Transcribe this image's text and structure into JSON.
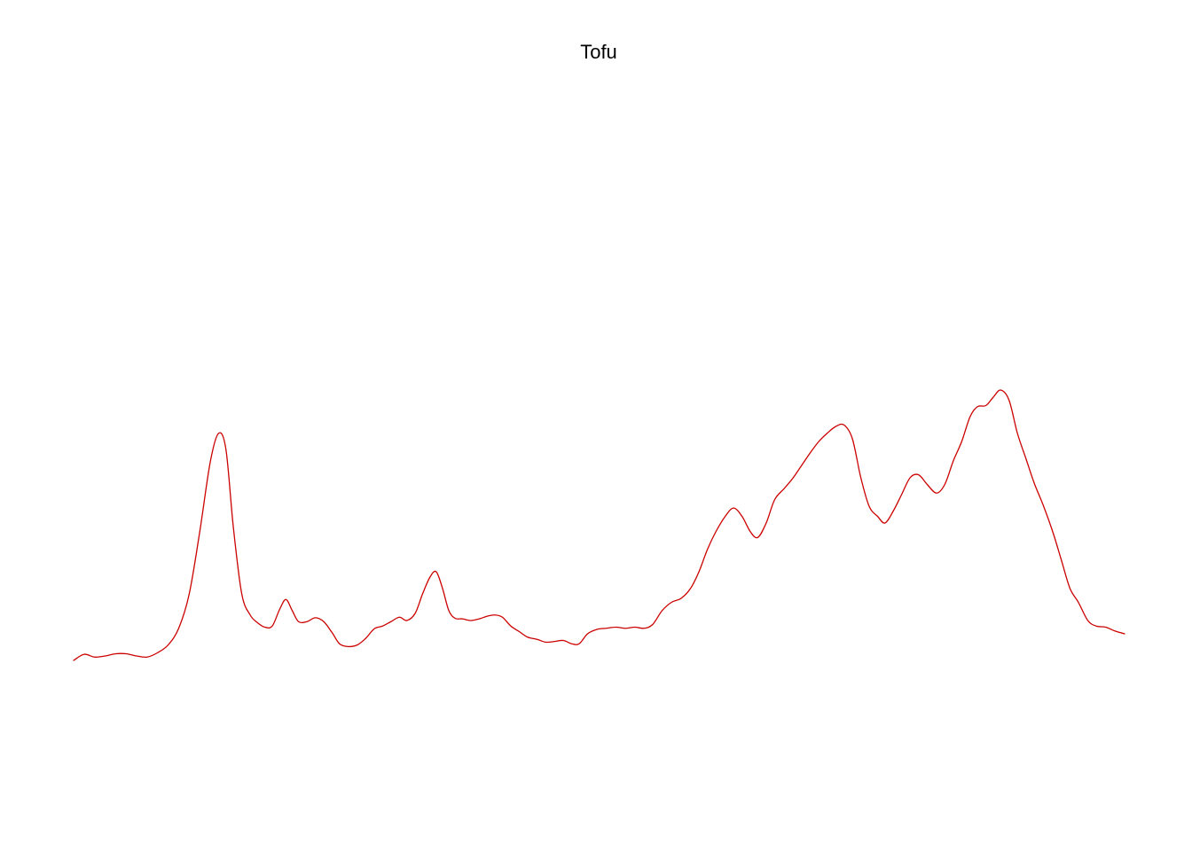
{
  "chart_data": {
    "type": "line",
    "title": "Tofu",
    "xlabel": "",
    "ylabel": "",
    "axes_visible": false,
    "grid": false,
    "legend": "none",
    "xlim": [
      0,
      100
    ],
    "ylim": [
      0,
      1
    ],
    "series": [
      {
        "color": "#cc0000",
        "points": [
          [
            0.0,
            0.0
          ],
          [
            1.0,
            0.011
          ],
          [
            2.0,
            0.006
          ],
          [
            3.0,
            0.008
          ],
          [
            4.0,
            0.012
          ],
          [
            5.0,
            0.012
          ],
          [
            6.0,
            0.008
          ],
          [
            7.0,
            0.006
          ],
          [
            8.0,
            0.014
          ],
          [
            9.0,
            0.028
          ],
          [
            10.0,
            0.058
          ],
          [
            11.0,
            0.12
          ],
          [
            12.0,
            0.232
          ],
          [
            13.0,
            0.358
          ],
          [
            13.8,
            0.41
          ],
          [
            14.5,
            0.38
          ],
          [
            15.2,
            0.24
          ],
          [
            16.0,
            0.12
          ],
          [
            16.8,
            0.082
          ],
          [
            17.5,
            0.068
          ],
          [
            18.2,
            0.06
          ],
          [
            18.9,
            0.062
          ],
          [
            19.6,
            0.092
          ],
          [
            20.2,
            0.11
          ],
          [
            20.8,
            0.09
          ],
          [
            21.4,
            0.07
          ],
          [
            22.2,
            0.07
          ],
          [
            23.0,
            0.077
          ],
          [
            23.8,
            0.07
          ],
          [
            24.6,
            0.05
          ],
          [
            25.3,
            0.03
          ],
          [
            26.1,
            0.025
          ],
          [
            27.0,
            0.028
          ],
          [
            27.8,
            0.04
          ],
          [
            28.6,
            0.057
          ],
          [
            29.4,
            0.062
          ],
          [
            30.2,
            0.07
          ],
          [
            31.0,
            0.078
          ],
          [
            31.7,
            0.072
          ],
          [
            32.5,
            0.085
          ],
          [
            33.2,
            0.12
          ],
          [
            33.9,
            0.15
          ],
          [
            34.5,
            0.16
          ],
          [
            35.1,
            0.13
          ],
          [
            35.7,
            0.09
          ],
          [
            36.3,
            0.076
          ],
          [
            37.0,
            0.075
          ],
          [
            37.8,
            0.072
          ],
          [
            38.6,
            0.075
          ],
          [
            39.4,
            0.08
          ],
          [
            40.1,
            0.082
          ],
          [
            40.8,
            0.078
          ],
          [
            41.6,
            0.062
          ],
          [
            42.4,
            0.052
          ],
          [
            43.2,
            0.042
          ],
          [
            44.1,
            0.038
          ],
          [
            44.9,
            0.033
          ],
          [
            45.7,
            0.034
          ],
          [
            46.6,
            0.036
          ],
          [
            47.4,
            0.03
          ],
          [
            48.1,
            0.03
          ],
          [
            48.9,
            0.048
          ],
          [
            49.8,
            0.056
          ],
          [
            50.7,
            0.058
          ],
          [
            51.6,
            0.06
          ],
          [
            52.5,
            0.058
          ],
          [
            53.4,
            0.06
          ],
          [
            54.3,
            0.058
          ],
          [
            55.1,
            0.065
          ],
          [
            56.0,
            0.09
          ],
          [
            56.9,
            0.105
          ],
          [
            57.8,
            0.112
          ],
          [
            58.7,
            0.13
          ],
          [
            59.5,
            0.16
          ],
          [
            60.3,
            0.2
          ],
          [
            61.1,
            0.232
          ],
          [
            62.0,
            0.26
          ],
          [
            62.8,
            0.275
          ],
          [
            63.6,
            0.26
          ],
          [
            64.4,
            0.232
          ],
          [
            65.1,
            0.222
          ],
          [
            65.9,
            0.248
          ],
          [
            66.7,
            0.29
          ],
          [
            67.6,
            0.31
          ],
          [
            68.4,
            0.328
          ],
          [
            69.2,
            0.35
          ],
          [
            70.1,
            0.375
          ],
          [
            70.9,
            0.395
          ],
          [
            71.7,
            0.41
          ],
          [
            72.5,
            0.422
          ],
          [
            73.3,
            0.425
          ],
          [
            74.1,
            0.4
          ],
          [
            74.9,
            0.33
          ],
          [
            75.7,
            0.278
          ],
          [
            76.5,
            0.26
          ],
          [
            77.2,
            0.248
          ],
          [
            78.0,
            0.27
          ],
          [
            78.8,
            0.3
          ],
          [
            79.6,
            0.33
          ],
          [
            80.4,
            0.335
          ],
          [
            81.2,
            0.318
          ],
          [
            82.1,
            0.302
          ],
          [
            82.9,
            0.318
          ],
          [
            83.7,
            0.36
          ],
          [
            84.5,
            0.395
          ],
          [
            85.3,
            0.44
          ],
          [
            86.0,
            0.458
          ],
          [
            86.8,
            0.46
          ],
          [
            87.5,
            0.475
          ],
          [
            88.2,
            0.488
          ],
          [
            89.0,
            0.47
          ],
          [
            89.8,
            0.41
          ],
          [
            90.6,
            0.365
          ],
          [
            91.4,
            0.32
          ],
          [
            92.3,
            0.278
          ],
          [
            93.2,
            0.23
          ],
          [
            94.0,
            0.18
          ],
          [
            94.8,
            0.13
          ],
          [
            95.6,
            0.105
          ],
          [
            96.5,
            0.072
          ],
          [
            97.3,
            0.062
          ],
          [
            98.2,
            0.06
          ],
          [
            99.1,
            0.053
          ],
          [
            100.0,
            0.048
          ]
        ]
      }
    ]
  }
}
